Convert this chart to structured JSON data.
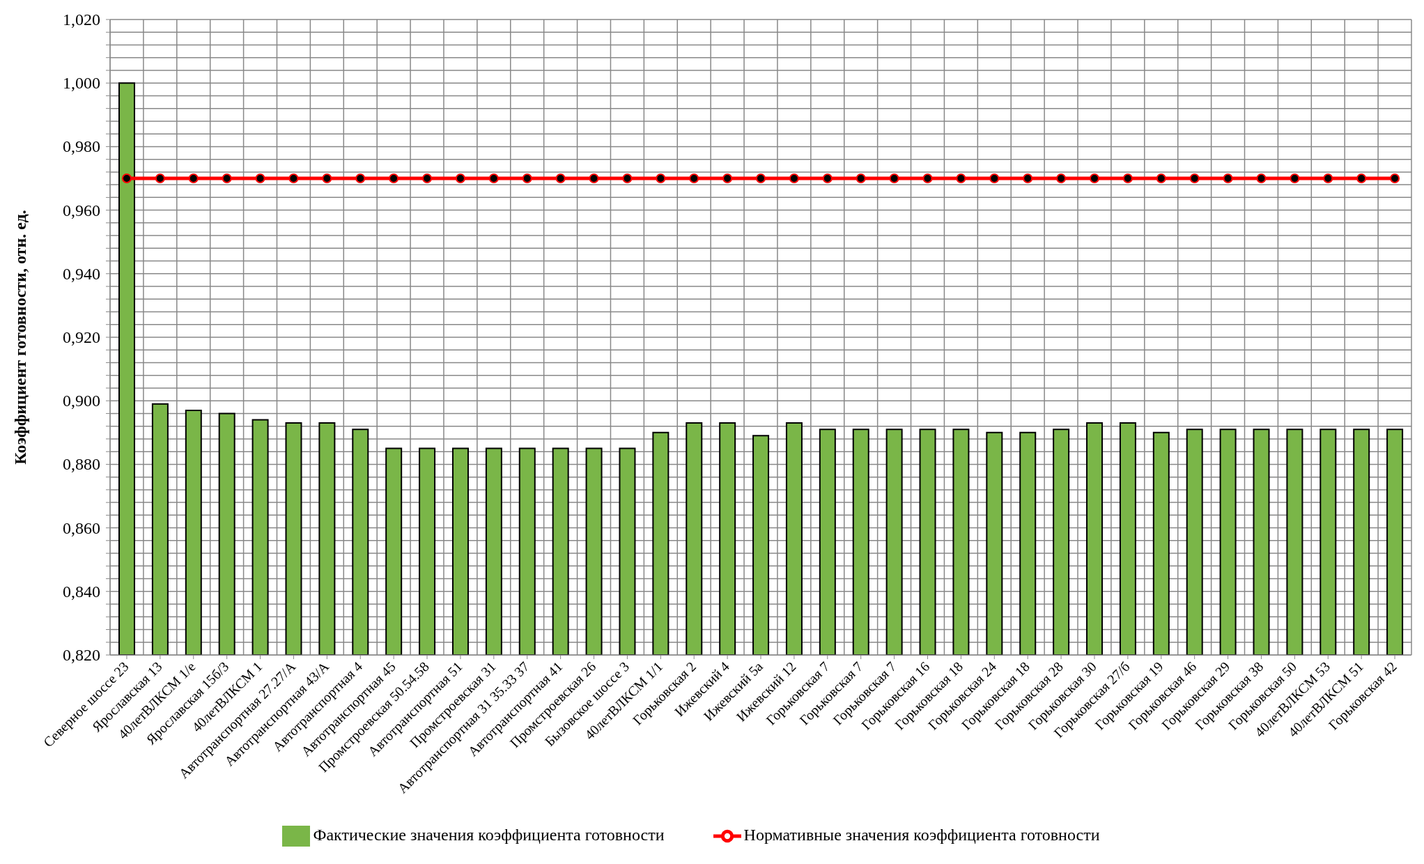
{
  "chart_data": {
    "type": "bar",
    "ylabel": "Коэффициент готовности, отн. ед.",
    "categories": [
      "Северное шоссе 23",
      "Ярославская 13",
      "40летВЛКСМ 1/е",
      "Ярославская 15б/3",
      "40летВЛКСМ 1",
      "Автотранспортная 27.27/А",
      "Автотранспортная 43/А",
      "Автотранспортная 4",
      "Автотранспортная 45",
      "Промстроевская 50.54.58",
      "Автотранспортная 51",
      "Промстроевская 31",
      "Автотранспортная 31 35.33 37",
      "Автотранспортная 41",
      "Промстроевская 26",
      "Бызовское шоссе 3",
      "40летВЛКСМ 1/1",
      "Горьковская 2",
      "Ижевский 4",
      "Ижевский 5а",
      "Ижевский 12",
      "Горьковская 7",
      "Горьковская 7",
      "Горьковская 7",
      "Горьковская 16",
      "Горьковская 18",
      "Горьковская 24",
      "Горьковская 18",
      "Горьковская 28",
      "Горьковская 30",
      "Горьковская 27/б",
      "Горьковская 19",
      "Горьковская 46",
      "Горьковская 29",
      "Горьковская 38",
      "Горьковская 50",
      "40летВЛКСМ 53",
      "40летВЛКСМ 51",
      "Горьковская 42"
    ],
    "series": [
      {
        "name": "Фактические значения коэффициента готовности",
        "color": "#7ab648",
        "values": [
          1.0,
          0.899,
          0.897,
          0.896,
          0.894,
          0.893,
          0.893,
          0.891,
          0.885,
          0.885,
          0.885,
          0.885,
          0.885,
          0.885,
          0.885,
          0.885,
          0.89,
          0.893,
          0.893,
          0.889,
          0.893,
          0.891,
          0.891,
          0.891,
          0.891,
          0.891,
          0.89,
          0.89,
          0.891,
          0.893,
          0.893,
          0.89,
          0.891,
          0.891,
          0.891,
          0.891,
          0.891,
          0.891,
          0.891
        ]
      },
      {
        "name": "Нормативные значения коэффициента готовности",
        "type": "line",
        "color": "#ff0000",
        "marker": "circle",
        "values": [
          0.97,
          0.97,
          0.97,
          0.97,
          0.97,
          0.97,
          0.97,
          0.97,
          0.97,
          0.97,
          0.97,
          0.97,
          0.97,
          0.97,
          0.97,
          0.97,
          0.97,
          0.97,
          0.97,
          0.97,
          0.97,
          0.97,
          0.97,
          0.97,
          0.97,
          0.97,
          0.97,
          0.97,
          0.97,
          0.97,
          0.97,
          0.97,
          0.97,
          0.97,
          0.97,
          0.97,
          0.97,
          0.97,
          0.97
        ]
      }
    ],
    "ylim": [
      0.82,
      1.02
    ],
    "yticks": [
      {
        "value": 0.82,
        "label": "0,820"
      },
      {
        "value": 0.824,
        "label": null
      },
      {
        "value": 0.828,
        "label": null
      },
      {
        "value": 0.832,
        "label": null
      },
      {
        "value": 0.836,
        "label": null
      },
      {
        "value": 0.84,
        "label": "0,840"
      },
      {
        "value": 0.844,
        "label": null
      },
      {
        "value": 0.848,
        "label": null
      },
      {
        "value": 0.852,
        "label": null
      },
      {
        "value": 0.856,
        "label": null
      },
      {
        "value": 0.86,
        "label": "0,860"
      },
      {
        "value": 0.864,
        "label": null
      },
      {
        "value": 0.868,
        "label": null
      },
      {
        "value": 0.872,
        "label": null
      },
      {
        "value": 0.876,
        "label": null
      },
      {
        "value": 0.88,
        "label": "0,880"
      },
      {
        "value": 0.884,
        "label": null
      },
      {
        "value": 0.888,
        "label": null
      },
      {
        "value": 0.892,
        "label": null
      },
      {
        "value": 0.896,
        "label": null
      },
      {
        "value": 0.9,
        "label": "0,900"
      },
      {
        "value": 0.904,
        "label": null
      },
      {
        "value": 0.908,
        "label": null
      },
      {
        "value": 0.912,
        "label": null
      },
      {
        "value": 0.916,
        "label": null
      },
      {
        "value": 0.92,
        "label": "0,920"
      },
      {
        "value": 0.924,
        "label": null
      },
      {
        "value": 0.928,
        "label": null
      },
      {
        "value": 0.932,
        "label": null
      },
      {
        "value": 0.936,
        "label": null
      },
      {
        "value": 0.94,
        "label": "0,940"
      },
      {
        "value": 0.944,
        "label": null
      },
      {
        "value": 0.948,
        "label": null
      },
      {
        "value": 0.952,
        "label": null
      },
      {
        "value": 0.956,
        "label": null
      },
      {
        "value": 0.96,
        "label": "0,960"
      },
      {
        "value": 0.964,
        "label": null
      },
      {
        "value": 0.968,
        "label": null
      },
      {
        "value": 0.972,
        "label": null
      },
      {
        "value": 0.976,
        "label": null
      },
      {
        "value": 0.98,
        "label": "0,980"
      },
      {
        "value": 0.984,
        "label": null
      },
      {
        "value": 0.988,
        "label": null
      },
      {
        "value": 0.992,
        "label": null
      },
      {
        "value": 0.996,
        "label": null
      },
      {
        "value": 1.0,
        "label": "1,000"
      },
      {
        "value": 1.004,
        "label": null
      },
      {
        "value": 1.008,
        "label": null
      },
      {
        "value": 1.012,
        "label": null
      },
      {
        "value": 1.016,
        "label": null
      },
      {
        "value": 1.02,
        "label": "1,020"
      }
    ],
    "grid": true,
    "legend": "bottom"
  }
}
